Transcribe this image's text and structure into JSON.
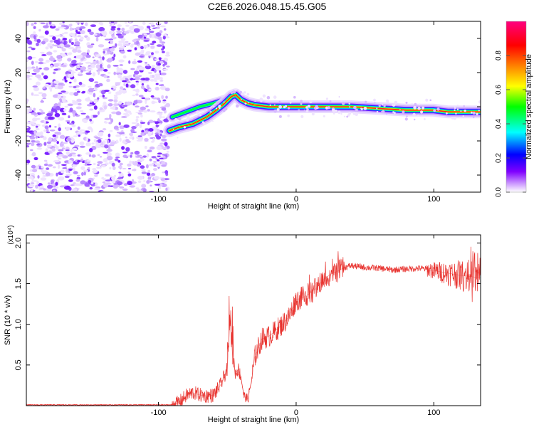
{
  "title": "C2E6.2026.048.15.45.G05",
  "chart_data": [
    {
      "type": "heatmap",
      "title": "C2E6.2026.048.15.45.G05",
      "xlabel": "Height of straight line (km)",
      "ylabel": "Frequency (Hz)",
      "xlim": [
        -196,
        134
      ],
      "ylim": [
        -50,
        50
      ],
      "xticks": [
        -100,
        0,
        100
      ],
      "xtick_labels": [
        "-100",
        "0",
        "100"
      ],
      "yticks": [
        -40,
        -20,
        0,
        20,
        40
      ],
      "ytick_labels": [
        "-40",
        "-20",
        "0",
        "20",
        "40"
      ],
      "noise_region_x": [
        -196,
        -93
      ],
      "ridge": {
        "x": [
          -92,
          -85,
          -75,
          -65,
          -58,
          -52,
          -47,
          -44,
          -40,
          -35,
          -30,
          -20,
          -10,
          0,
          10,
          20,
          40,
          60,
          80,
          90,
          100,
          110,
          120,
          134
        ],
        "y": [
          -14,
          -12,
          -10,
          -6,
          -2,
          2,
          6,
          7,
          4,
          2,
          1,
          0,
          0,
          0,
          0,
          0,
          0,
          -1,
          -2,
          -2,
          -2,
          -3,
          -3,
          -3
        ]
      },
      "upper_branch": {
        "x": [
          -90,
          -80,
          -70,
          -60,
          -52,
          -46
        ],
        "y": [
          -6,
          -3,
          0,
          2,
          4,
          5
        ]
      },
      "colorbar": {
        "label": "Normalized spectral amplitude",
        "range": [
          0,
          1
        ],
        "ticks": [
          0.0,
          0.2,
          0.4,
          0.6,
          0.8
        ],
        "tick_labels": [
          "0.0",
          "0.2",
          "0.4",
          "0.6",
          "0.8"
        ],
        "colors": [
          "#ffffff",
          "#cc99ff",
          "#8000ff",
          "#0000ff",
          "#00ffff",
          "#00ff00",
          "#ffff00",
          "#ff8000",
          "#ff0000",
          "#ff0080"
        ]
      }
    },
    {
      "type": "line",
      "xlabel": "Height of straight line (km)",
      "ylabel": "SNR (10 * v/v)",
      "y_multiplier_label": "(x10⁴)",
      "xlim": [
        -196,
        134
      ],
      "ylim": [
        0,
        2.1
      ],
      "xticks": [
        -100,
        0,
        100
      ],
      "xtick_labels": [
        "-100",
        "0",
        "100"
      ],
      "yticks": [
        0.5,
        1.0,
        1.5,
        2.0
      ],
      "ytick_labels": [
        "0.5",
        "1.0",
        "1.5",
        "2.0"
      ],
      "line_color": "#e8322e",
      "series": [
        {
          "name": "SNR",
          "x": [
            -196,
            -90,
            -85,
            -80,
            -75,
            -70,
            -65,
            -60,
            -55,
            -50,
            -48,
            -46,
            -44,
            -42,
            -40,
            -38,
            -35,
            -32,
            -30,
            -25,
            -20,
            -15,
            -10,
            -5,
            0,
            5,
            10,
            15,
            20,
            25,
            30,
            35,
            40,
            50,
            60,
            70,
            80,
            90,
            100,
            110,
            120,
            130,
            134
          ],
          "y": [
            0.01,
            0.01,
            0.04,
            0.12,
            0.16,
            0.13,
            0.12,
            0.13,
            0.25,
            0.45,
            1.05,
            0.55,
            0.4,
            0.45,
            0.35,
            0.12,
            0.08,
            0.35,
            0.6,
            0.82,
            0.85,
            0.92,
            1.0,
            1.1,
            1.3,
            1.33,
            1.38,
            1.45,
            1.55,
            1.62,
            1.65,
            1.7,
            1.72,
            1.7,
            1.69,
            1.67,
            1.68,
            1.69,
            1.66,
            1.63,
            1.6,
            1.58,
            1.57
          ]
        }
      ]
    }
  ]
}
